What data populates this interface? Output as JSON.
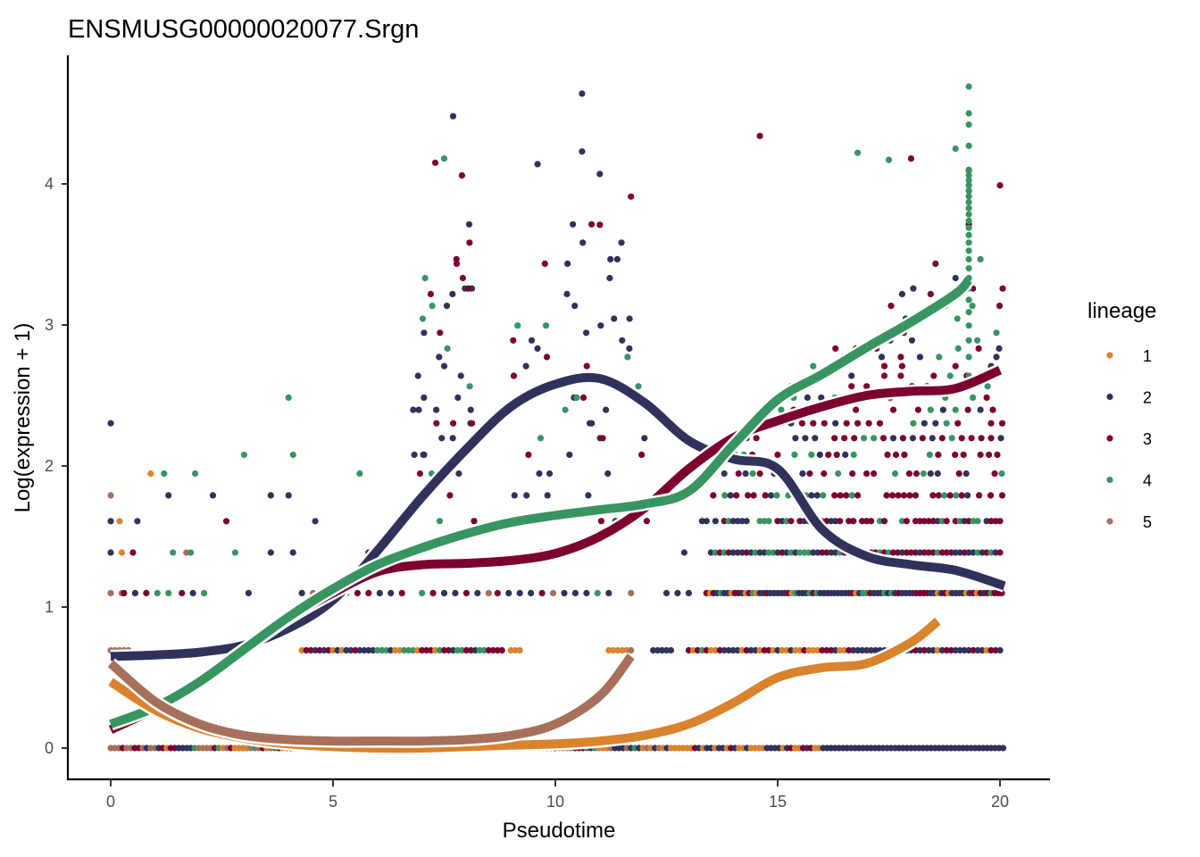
{
  "chart_data": {
    "type": "scatter",
    "title": "ENSMUSG00000020077.Srgn",
    "xlabel": "Pseudotime",
    "ylabel": "Log(expression + 1)",
    "xlim": [
      -1,
      21
    ],
    "ylim": [
      -0.22,
      4.9
    ],
    "x_ticks": [
      0,
      5,
      10,
      15,
      20
    ],
    "y_ticks": [
      0,
      1,
      2,
      3,
      4
    ],
    "grid": false,
    "legend": {
      "title": "lineage",
      "position": "right",
      "entries": [
        {
          "label": "1",
          "color": "#D9832E"
        },
        {
          "label": "2",
          "color": "#30325C"
        },
        {
          "label": "3",
          "color": "#7C0030"
        },
        {
          "label": "4",
          "color": "#389461"
        },
        {
          "label": "5",
          "color": "#A6705A"
        }
      ]
    },
    "series": [
      {
        "name": "1",
        "color": "#D9832E",
        "smooth_x": [
          0,
          1,
          2,
          3,
          4,
          5,
          6,
          7,
          8,
          9,
          10,
          11,
          12,
          13,
          14,
          15,
          16,
          17,
          18,
          18.6
        ],
        "smooth_y": [
          0.47,
          0.27,
          0.14,
          0.07,
          0.03,
          0.01,
          0.0,
          0.0,
          0.01,
          0.02,
          0.03,
          0.05,
          0.09,
          0.17,
          0.32,
          0.5,
          0.57,
          0.6,
          0.75,
          0.9
        ],
        "points": {
          "levels": [
            0,
            0.693,
            1.099,
            1.386,
            1.609,
            1.946
          ],
          "x_ranges": [
            [
              [
                0,
                20.1
              ]
            ],
            [
              [
                0,
                0.4
              ],
              [
                4.5,
                11.5
              ],
              [
                13,
                16.2
              ]
            ],
            [
              [
                0.1,
                0.2
              ],
              [
                4.7,
                4.8
              ]
            ],
            [
              [
                0.3,
                0.4
              ]
            ],
            [
              [
                0.1,
                0.3
              ]
            ],
            [
              [
                0.9,
                0.9
              ]
            ]
          ]
        }
      },
      {
        "name": "2",
        "color": "#30325C",
        "smooth_x": [
          0,
          1,
          2,
          3,
          4,
          5,
          6,
          7,
          8,
          9,
          10,
          11,
          12,
          13,
          14,
          15,
          16,
          17,
          18,
          19,
          20.1
        ],
        "smooth_y": [
          0.65,
          0.66,
          0.68,
          0.73,
          0.85,
          1.05,
          1.4,
          1.78,
          2.12,
          2.42,
          2.58,
          2.62,
          2.45,
          2.18,
          2.05,
          1.98,
          1.55,
          1.36,
          1.3,
          1.26,
          1.15
        ],
        "points": {
          "levels": [
            0,
            0.693,
            1.099,
            1.386,
            1.609,
            1.792,
            1.946,
            2.079,
            2.197,
            2.303,
            2.398,
            2.485,
            2.565,
            2.639,
            2.708,
            2.773,
            2.833,
            2.89,
            2.944,
            2.996,
            3.045,
            3.178,
            3.258,
            3.332,
            3.466,
            3.584,
            3.714,
            3.829,
            3.871,
            3.951,
            4.06,
            4.143,
            4.234,
            4.477,
            4.635
          ],
          "x_ranges": "dense"
        }
      },
      {
        "name": "3",
        "color": "#7C0030",
        "smooth_x": [
          0,
          1,
          2,
          3,
          4,
          5,
          6,
          7,
          8,
          9,
          10,
          11,
          12,
          13,
          14,
          15,
          16,
          17,
          18,
          19,
          20
        ],
        "smooth_y": [
          0.13,
          0.28,
          0.48,
          0.7,
          0.92,
          1.1,
          1.25,
          1.3,
          1.31,
          1.33,
          1.38,
          1.5,
          1.7,
          1.98,
          2.2,
          2.32,
          2.42,
          2.5,
          2.53,
          2.55,
          2.68
        ],
        "points": {
          "levels": "log1p-integers",
          "x_ranges": "dense-right"
        }
      },
      {
        "name": "4",
        "color": "#389461",
        "smooth_x": [
          0,
          1,
          2,
          3,
          4,
          5,
          6,
          7,
          8,
          9,
          10,
          11,
          12,
          13,
          14,
          15,
          16,
          17,
          18,
          19,
          19.3
        ],
        "smooth_y": [
          0.17,
          0.29,
          0.47,
          0.7,
          0.93,
          1.13,
          1.3,
          1.42,
          1.52,
          1.6,
          1.65,
          1.69,
          1.73,
          1.82,
          2.15,
          2.47,
          2.65,
          2.84,
          3.02,
          3.22,
          3.32
        ],
        "points": {
          "levels": "log1p-integers",
          "x_ranges": "scattered"
        }
      },
      {
        "name": "5",
        "color": "#A6705A",
        "smooth_x": [
          0,
          1,
          2,
          3,
          4,
          5,
          6,
          7,
          8,
          9,
          10,
          11,
          11.7
        ],
        "smooth_y": [
          0.6,
          0.33,
          0.17,
          0.09,
          0.06,
          0.05,
          0.05,
          0.05,
          0.06,
          0.09,
          0.17,
          0.37,
          0.65
        ],
        "points": {
          "levels": [
            0,
            0.693,
            1.099,
            1.386,
            1.792,
            1.946,
            2.079,
            2.303
          ],
          "x_ranges": [
            [
              [
                0,
                11.8
              ]
            ],
            [
              [
                0,
                0.2
              ],
              [
                11.7,
                11.7
              ]
            ],
            [
              [
                0,
                2.4
              ],
              [
                11.7,
                11.7
              ]
            ],
            [
              [
                0.9,
                0.9
              ]
            ],
            [
              [
                0,
                0
              ]
            ],
            [
              [
                11.7,
                11.7
              ]
            ],
            [
              [
                11.7,
                11.7
              ]
            ],
            [
              [
                11.7,
                11.7
              ]
            ]
          ]
        }
      }
    ]
  }
}
